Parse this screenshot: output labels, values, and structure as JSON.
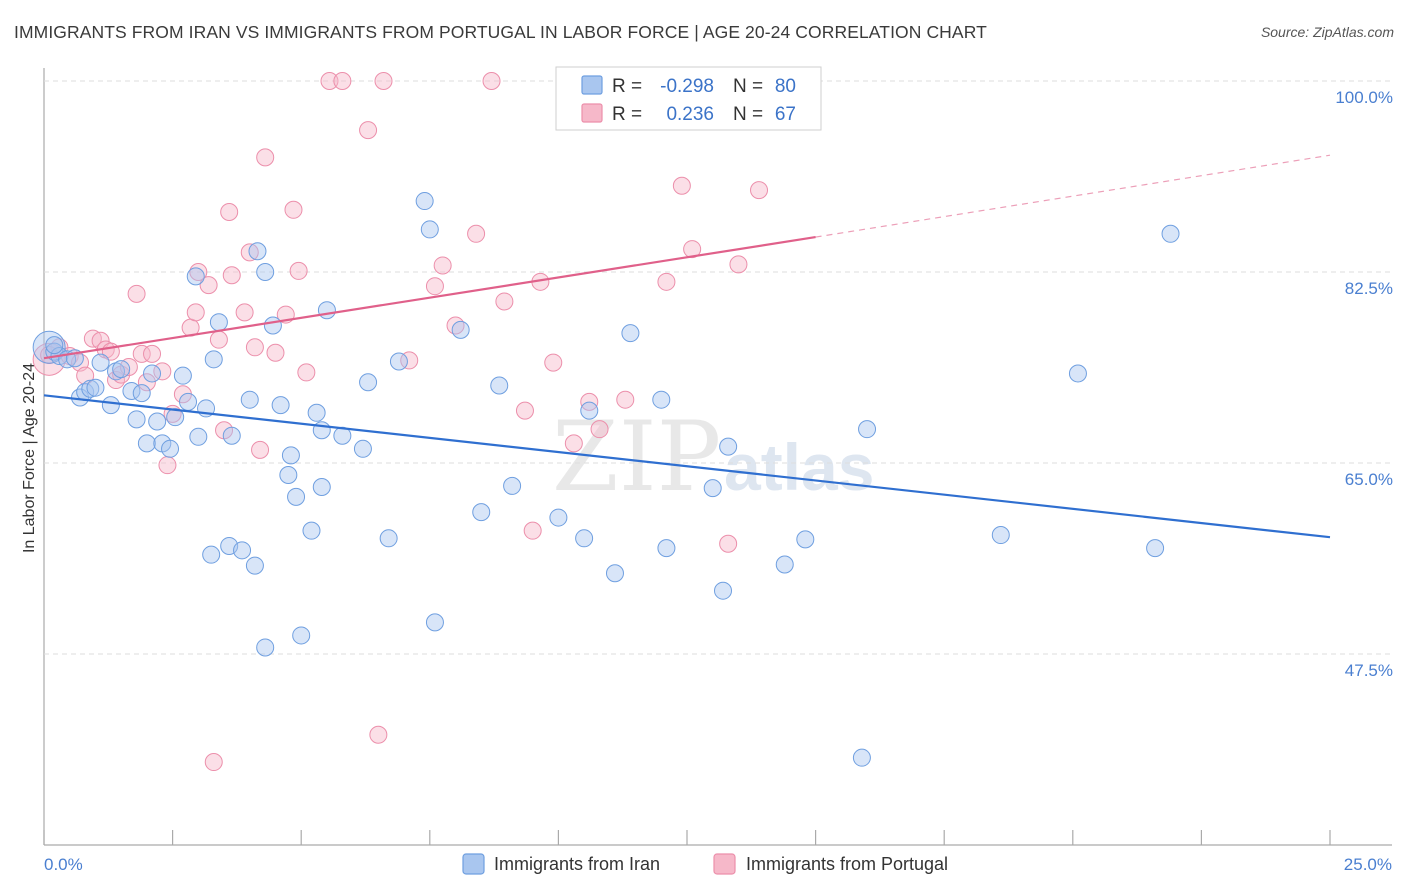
{
  "title": "IMMIGRANTS FROM IRAN VS IMMIGRANTS FROM PORTUGAL IN LABOR FORCE | AGE 20-24 CORRELATION CHART",
  "source": "Source: ZipAtlas.com",
  "watermark": {
    "part1": "ZIP",
    "part2": "atlas"
  },
  "legend": {
    "r_label": "R =",
    "n_label": "N =",
    "rows": [
      {
        "r": "-0.298",
        "n": "80",
        "color": "#a9c6ef"
      },
      {
        "r": "0.236",
        "n": "67",
        "color": "#f6b8c9"
      }
    ]
  },
  "bottom_legend": [
    "Immigrants from Iran",
    "Immigrants from Portugal"
  ],
  "chart_data": {
    "type": "scatter",
    "title": "IMMIGRANTS FROM IRAN VS IMMIGRANTS FROM PORTUGAL IN LABOR FORCE | AGE 20-24 CORRELATION CHART",
    "xlabel": "",
    "ylabel": "In Labor Force | Age 20-24",
    "xlim": [
      0,
      25
    ],
    "ylim": [
      32,
      102
    ],
    "x_tick_labels": [
      "0.0%",
      "25.0%"
    ],
    "y_ticks": [
      47.5,
      65.0,
      82.5,
      100.0
    ],
    "y_tick_labels": [
      "47.5%",
      "65.0%",
      "82.5%",
      "100.0%"
    ],
    "grid": "horizontal dashed",
    "legend_position": "top-center",
    "series": [
      {
        "name": "Immigrants from Iran",
        "color": "#a9c6ef",
        "edge": "#6f9fe0",
        "trend_color": "#2f6fd0",
        "trend": {
          "x0": 0,
          "y0": 71.2,
          "x1": 25,
          "y1": 58.2
        },
        "points": [
          [
            0.1,
            75.6
          ],
          [
            0.2,
            75.2
          ],
          [
            0.3,
            74.8
          ],
          [
            0.45,
            74.5
          ],
          [
            0.6,
            74.6
          ],
          [
            0.7,
            71.0
          ],
          [
            0.8,
            71.5
          ],
          [
            0.9,
            71.8
          ],
          [
            1.0,
            71.9
          ],
          [
            1.1,
            74.2
          ],
          [
            1.3,
            70.3
          ],
          [
            1.4,
            73.4
          ],
          [
            1.5,
            73.6
          ],
          [
            1.7,
            71.6
          ],
          [
            1.8,
            69.0
          ],
          [
            1.9,
            71.4
          ],
          [
            2.0,
            66.8
          ],
          [
            2.1,
            73.2
          ],
          [
            2.2,
            68.8
          ],
          [
            2.3,
            66.8
          ],
          [
            2.45,
            66.3
          ],
          [
            2.55,
            69.2
          ],
          [
            2.7,
            73.0
          ],
          [
            2.8,
            70.6
          ],
          [
            2.95,
            82.1
          ],
          [
            3.0,
            67.4
          ],
          [
            3.15,
            70.0
          ],
          [
            3.25,
            56.6
          ],
          [
            3.3,
            74.5
          ],
          [
            3.4,
            77.9
          ],
          [
            3.6,
            57.4
          ],
          [
            3.65,
            67.5
          ],
          [
            3.85,
            57.0
          ],
          [
            4.0,
            70.8
          ],
          [
            4.1,
            55.6
          ],
          [
            4.15,
            84.4
          ],
          [
            4.3,
            82.5
          ],
          [
            4.3,
            48.1
          ],
          [
            4.45,
            77.6
          ],
          [
            4.6,
            70.3
          ],
          [
            4.75,
            63.9
          ],
          [
            4.8,
            65.7
          ],
          [
            4.9,
            61.9
          ],
          [
            5.0,
            49.2
          ],
          [
            5.2,
            58.8
          ],
          [
            5.3,
            69.6
          ],
          [
            5.4,
            62.8
          ],
          [
            5.5,
            79.0
          ],
          [
            5.8,
            67.5
          ],
          [
            6.2,
            66.3
          ],
          [
            6.3,
            72.4
          ],
          [
            6.7,
            58.1
          ],
          [
            6.9,
            74.3
          ],
          [
            7.4,
            89.0
          ],
          [
            7.5,
            86.4
          ],
          [
            7.6,
            50.4
          ],
          [
            8.1,
            77.2
          ],
          [
            8.5,
            60.5
          ],
          [
            8.85,
            72.1
          ],
          [
            9.1,
            62.9
          ],
          [
            10.0,
            60.0
          ],
          [
            10.5,
            58.1
          ],
          [
            10.6,
            69.8
          ],
          [
            11.1,
            54.9
          ],
          [
            11.4,
            76.9
          ],
          [
            12.0,
            70.8
          ],
          [
            12.1,
            57.2
          ],
          [
            13.0,
            62.7
          ],
          [
            13.2,
            53.3
          ],
          [
            13.3,
            66.5
          ],
          [
            14.4,
            55.7
          ],
          [
            14.8,
            58.0
          ],
          [
            16.0,
            68.1
          ],
          [
            18.6,
            58.4
          ],
          [
            20.1,
            73.2
          ],
          [
            21.6,
            57.2
          ],
          [
            21.9,
            86.0
          ],
          [
            15.9,
            38.0
          ],
          [
            0.2,
            75.8
          ],
          [
            5.4,
            68.0
          ]
        ]
      },
      {
        "name": "Immigrants from Portugal",
        "color": "#f6b8c9",
        "edge": "#ec8fab",
        "trend_color": "#e0608a",
        "trend": {
          "x0": 0,
          "y0": 74.6,
          "x1": 15,
          "y1": 85.7
        },
        "trend_dashed_to": {
          "x": 25,
          "y": 93.2
        },
        "points": [
          [
            0.1,
            74.5
          ],
          [
            0.3,
            75.6
          ],
          [
            0.5,
            74.8
          ],
          [
            0.7,
            74.2
          ],
          [
            0.8,
            73.0
          ],
          [
            0.95,
            76.4
          ],
          [
            1.1,
            76.2
          ],
          [
            1.2,
            75.4
          ],
          [
            1.3,
            75.2
          ],
          [
            1.4,
            72.6
          ],
          [
            1.5,
            73.1
          ],
          [
            1.65,
            73.8
          ],
          [
            1.8,
            80.5
          ],
          [
            1.9,
            75.0
          ],
          [
            2.0,
            72.4
          ],
          [
            2.1,
            75.0
          ],
          [
            2.3,
            73.4
          ],
          [
            2.4,
            64.8
          ],
          [
            2.5,
            69.5
          ],
          [
            2.7,
            71.3
          ],
          [
            2.85,
            77.4
          ],
          [
            2.95,
            78.8
          ],
          [
            3.0,
            82.5
          ],
          [
            3.2,
            81.3
          ],
          [
            3.4,
            76.3
          ],
          [
            3.5,
            68.0
          ],
          [
            3.6,
            88.0
          ],
          [
            3.65,
            82.2
          ],
          [
            3.9,
            78.8
          ],
          [
            4.0,
            84.3
          ],
          [
            4.1,
            75.6
          ],
          [
            4.2,
            66.2
          ],
          [
            4.3,
            93.0
          ],
          [
            4.5,
            75.1
          ],
          [
            4.7,
            78.6
          ],
          [
            4.85,
            88.2
          ],
          [
            4.95,
            82.6
          ],
          [
            5.1,
            73.3
          ],
          [
            5.55,
            100.0
          ],
          [
            5.8,
            100.0
          ],
          [
            6.3,
            95.5
          ],
          [
            6.6,
            100.0
          ],
          [
            7.1,
            74.4
          ],
          [
            7.6,
            81.2
          ],
          [
            7.75,
            83.1
          ],
          [
            8.0,
            77.6
          ],
          [
            8.4,
            86.0
          ],
          [
            8.7,
            100.0
          ],
          [
            8.95,
            79.8
          ],
          [
            9.35,
            69.8
          ],
          [
            9.5,
            58.8
          ],
          [
            9.65,
            81.6
          ],
          [
            9.9,
            74.2
          ],
          [
            10.3,
            66.8
          ],
          [
            10.6,
            70.6
          ],
          [
            10.8,
            68.1
          ],
          [
            11.3,
            70.8
          ],
          [
            12.1,
            81.6
          ],
          [
            12.4,
            90.4
          ],
          [
            12.6,
            84.6
          ],
          [
            13.3,
            57.6
          ],
          [
            13.5,
            83.2
          ],
          [
            13.9,
            90.0
          ],
          [
            14.0,
            100.0
          ],
          [
            3.3,
            37.6
          ],
          [
            6.5,
            40.1
          ],
          [
            0.1,
            74.9
          ]
        ]
      }
    ]
  }
}
